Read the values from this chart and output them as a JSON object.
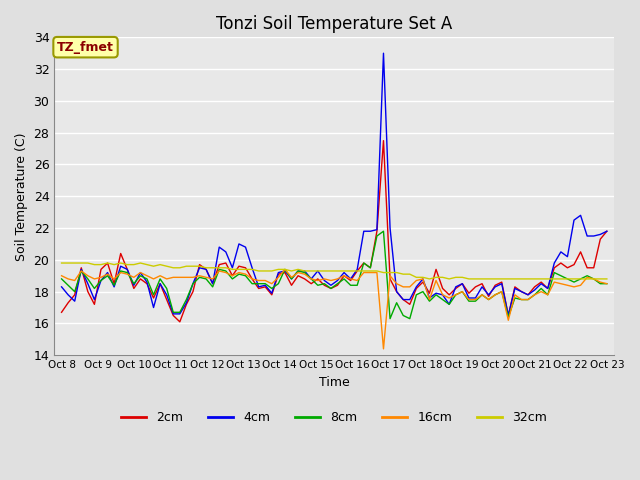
{
  "title": "Tonzi Soil Temperature Set A",
  "xlabel": "Time",
  "ylabel": "Soil Temperature (C)",
  "ylim": [
    14,
    34
  ],
  "yticks": [
    14,
    16,
    18,
    20,
    22,
    24,
    26,
    28,
    30,
    32,
    34
  ],
  "xtick_labels": [
    "Oct 8",
    "Oct 9",
    "Oct 10",
    "Oct 11",
    "Oct 12",
    "Oct 13",
    "Oct 14",
    "Oct 15",
    "Oct 16",
    "Oct 17",
    "Oct 18",
    "Oct 19",
    "Oct 20",
    "Oct 21",
    "Oct 22",
    "Oct 23"
  ],
  "background_color": "#e0e0e0",
  "plot_bg_color": "#e8e8e8",
  "grid_color": "#ffffff",
  "annotation_text": "TZ_fmet",
  "annotation_bg": "#ffffaa",
  "annotation_fg": "#8b0000",
  "annotation_border": "#999900",
  "series_colors": [
    "#dd0000",
    "#0000ee",
    "#00aa00",
    "#ff8800",
    "#cccc00"
  ],
  "series_labels": [
    "2cm",
    "4cm",
    "8cm",
    "16cm",
    "32cm"
  ],
  "data_2cm": [
    16.7,
    17.3,
    17.8,
    19.5,
    18.0,
    17.2,
    19.4,
    19.8,
    18.5,
    20.4,
    19.4,
    18.2,
    18.8,
    18.5,
    17.6,
    18.5,
    17.5,
    16.5,
    16.1,
    17.2,
    18.0,
    19.7,
    19.4,
    18.5,
    19.7,
    19.8,
    19.0,
    19.6,
    19.5,
    18.8,
    18.2,
    18.3,
    17.8,
    19.1,
    19.2,
    18.4,
    19.0,
    18.8,
    18.5,
    18.8,
    18.4,
    18.2,
    18.4,
    19.0,
    18.7,
    19.3,
    19.8,
    19.5,
    21.8,
    27.5,
    18.8,
    18.0,
    17.5,
    17.2,
    18.2,
    18.6,
    17.9,
    19.4,
    18.2,
    17.8,
    18.2,
    18.5,
    17.9,
    18.3,
    18.5,
    17.7,
    18.4,
    18.6,
    16.5,
    18.3,
    18.0,
    17.8,
    18.3,
    18.6,
    18.2,
    19.5,
    19.8,
    19.5,
    19.7,
    20.5,
    19.5,
    19.5,
    21.3,
    21.8
  ],
  "data_4cm": [
    18.3,
    17.8,
    17.4,
    19.4,
    18.5,
    17.5,
    18.7,
    19.2,
    18.3,
    19.6,
    19.4,
    18.4,
    19.2,
    18.6,
    17.0,
    18.5,
    17.8,
    16.6,
    16.6,
    17.3,
    18.5,
    19.5,
    19.4,
    18.5,
    20.8,
    20.5,
    19.5,
    21.0,
    20.8,
    19.5,
    18.3,
    18.4,
    17.9,
    19.2,
    19.3,
    18.8,
    19.3,
    19.3,
    18.8,
    19.3,
    18.7,
    18.4,
    18.7,
    19.2,
    18.8,
    19.4,
    21.8,
    21.8,
    21.9,
    33.0,
    22.0,
    18.0,
    17.5,
    17.5,
    18.3,
    18.8,
    17.6,
    17.9,
    17.8,
    17.2,
    18.3,
    18.5,
    17.6,
    17.6,
    18.3,
    17.8,
    18.3,
    18.5,
    16.5,
    18.2,
    18.0,
    17.8,
    18.1,
    18.5,
    18.2,
    19.8,
    20.5,
    20.2,
    22.5,
    22.8,
    21.5,
    21.5,
    21.6,
    21.8
  ],
  "data_8cm": [
    18.8,
    18.4,
    18.0,
    19.3,
    18.8,
    18.2,
    18.7,
    19.0,
    18.4,
    19.3,
    19.2,
    18.5,
    19.0,
    18.8,
    17.8,
    18.8,
    18.2,
    16.7,
    16.7,
    17.5,
    18.5,
    18.9,
    18.8,
    18.3,
    19.4,
    19.3,
    18.8,
    19.1,
    19.0,
    18.5,
    18.5,
    18.5,
    18.2,
    18.5,
    19.4,
    18.8,
    19.3,
    19.2,
    18.8,
    18.4,
    18.5,
    18.2,
    18.5,
    18.8,
    18.4,
    18.4,
    19.8,
    19.5,
    21.5,
    21.8,
    16.3,
    17.3,
    16.5,
    16.3,
    17.8,
    18.0,
    17.4,
    17.8,
    17.5,
    17.2,
    17.8,
    18.0,
    17.4,
    17.4,
    17.8,
    17.5,
    17.8,
    18.0,
    16.4,
    17.6,
    17.5,
    17.5,
    17.8,
    18.2,
    17.8,
    19.2,
    19.0,
    18.8,
    18.6,
    18.8,
    19.0,
    18.8,
    18.5,
    18.5
  ],
  "data_16cm": [
    19.0,
    18.8,
    18.7,
    19.3,
    19.0,
    18.8,
    18.9,
    19.1,
    18.8,
    19.2,
    19.1,
    18.9,
    19.2,
    19.0,
    18.8,
    19.0,
    18.8,
    18.9,
    18.9,
    18.9,
    18.9,
    19.0,
    18.9,
    18.8,
    19.3,
    19.2,
    19.0,
    19.2,
    19.1,
    18.8,
    18.7,
    18.7,
    18.5,
    18.9,
    19.4,
    18.9,
    19.2,
    19.1,
    18.8,
    18.7,
    18.8,
    18.7,
    18.8,
    19.0,
    18.8,
    18.7,
    19.2,
    19.2,
    19.2,
    14.4,
    19.0,
    18.5,
    18.3,
    18.3,
    18.7,
    18.8,
    17.5,
    18.7,
    17.8,
    17.6,
    17.8,
    18.0,
    17.5,
    17.5,
    17.8,
    17.5,
    17.8,
    18.0,
    16.2,
    17.8,
    17.5,
    17.5,
    17.8,
    18.0,
    17.8,
    18.6,
    18.5,
    18.4,
    18.3,
    18.4,
    18.9,
    18.8,
    18.6,
    18.5
  ],
  "data_32cm": [
    19.8,
    19.8,
    19.8,
    19.8,
    19.8,
    19.7,
    19.7,
    19.8,
    19.7,
    19.8,
    19.7,
    19.7,
    19.8,
    19.7,
    19.6,
    19.7,
    19.6,
    19.5,
    19.5,
    19.6,
    19.6,
    19.6,
    19.5,
    19.5,
    19.5,
    19.5,
    19.4,
    19.4,
    19.4,
    19.4,
    19.3,
    19.3,
    19.3,
    19.4,
    19.4,
    19.3,
    19.4,
    19.3,
    19.3,
    19.3,
    19.3,
    19.3,
    19.3,
    19.3,
    19.3,
    19.3,
    19.3,
    19.3,
    19.3,
    19.2,
    19.2,
    19.2,
    19.1,
    19.1,
    18.9,
    18.9,
    18.8,
    18.9,
    18.9,
    18.8,
    18.9,
    18.9,
    18.8,
    18.8,
    18.8,
    18.8,
    18.8,
    18.8,
    18.8,
    18.8,
    18.8,
    18.8,
    18.8,
    18.8,
    18.8,
    18.8,
    18.8,
    18.8,
    18.8,
    18.8,
    18.8,
    18.8,
    18.8,
    18.8
  ]
}
